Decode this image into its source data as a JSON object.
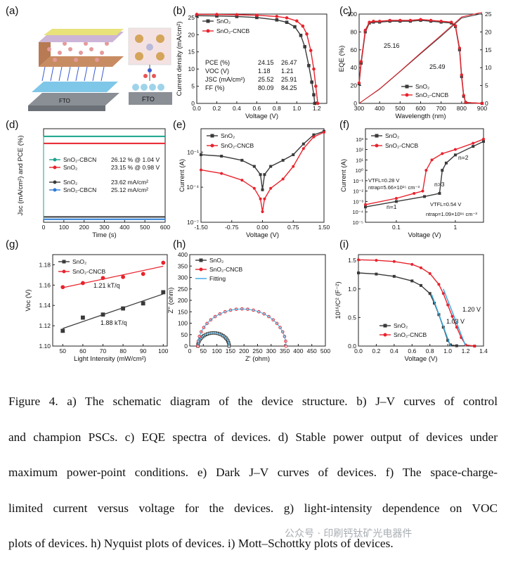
{
  "panels": [
    {
      "id": "a",
      "label": "(a)",
      "fto1": "FTO",
      "fto2": "FTO"
    },
    {
      "id": "b",
      "label": "(b)"
    },
    {
      "id": "c",
      "label": "(c)"
    },
    {
      "id": "d",
      "label": "(d)"
    },
    {
      "id": "e",
      "label": "(e)"
    },
    {
      "id": "f",
      "label": "(f)"
    },
    {
      "id": "g",
      "label": "(g)"
    },
    {
      "id": "h",
      "label": "(h)"
    },
    {
      "id": "i",
      "label": "(i)"
    }
  ],
  "colors": {
    "black": "#3a3a3a",
    "red": "#e8232d",
    "blue": "#2b7bd4",
    "teal": "#1aa38c",
    "fit": "#35a8e0"
  },
  "chart_data": [
    {
      "panel": "b",
      "type": "line",
      "xlabel": "Voltage (V)",
      "ylabel": "Current density (mA/cm²)",
      "xlim": [
        0,
        1.3
      ],
      "ylim": [
        0,
        26
      ],
      "xticks": [
        0.0,
        0.2,
        0.4,
        0.6,
        0.8,
        1.0,
        1.2
      ],
      "yticks": [
        0,
        5,
        10,
        15,
        20,
        25
      ],
      "legend": [
        "SnO₂",
        "SnO₂-CNCB"
      ],
      "table": {
        "rows": [
          {
            "name": "PCE (%)",
            "v1": "24.15",
            "v2": "26.47"
          },
          {
            "name": "VOC (V)",
            "v1": "1.18",
            "v2": "1.21"
          },
          {
            "name": "JSC (mA/cm²)",
            "v1": "25.52",
            "v2": "25.91"
          },
          {
            "name": "FF (%)",
            "v1": "80.09",
            "v2": "84.25"
          }
        ]
      },
      "series": [
        {
          "name": "SnO₂",
          "x": [
            0,
            0.2,
            0.4,
            0.6,
            0.8,
            0.9,
            0.98,
            1.04,
            1.08,
            1.12,
            1.15,
            1.17,
            1.18
          ],
          "y": [
            25.52,
            25.45,
            25.3,
            25.0,
            24.3,
            23.6,
            22.3,
            19.8,
            16.5,
            11.0,
            6.2,
            2.5,
            0
          ]
        },
        {
          "name": "SnO₂-CNCB",
          "x": [
            0,
            0.2,
            0.4,
            0.6,
            0.8,
            0.9,
            1.0,
            1.06,
            1.1,
            1.14,
            1.17,
            1.19,
            1.21
          ],
          "y": [
            25.91,
            25.88,
            25.8,
            25.65,
            25.3,
            24.9,
            24.0,
            22.5,
            20.2,
            15.4,
            10.0,
            5.0,
            0
          ]
        }
      ]
    },
    {
      "panel": "c",
      "type": "line",
      "xlabel": "Wavelength (nm)",
      "ylabel": "EQE (%)",
      "y2label": "Integrated Jsc (mA/cm²)",
      "xlim": [
        300,
        900
      ],
      "ylim": [
        0,
        100
      ],
      "y2lim": [
        0,
        25
      ],
      "xticks": [
        300,
        400,
        500,
        600,
        700,
        800,
        900
      ],
      "yticks": [
        0,
        20,
        40,
        60,
        80,
        100
      ],
      "y2ticks": [
        0,
        5,
        10,
        15,
        20,
        25
      ],
      "legend": [
        "SnO₂",
        "SnO₂-CNCB"
      ],
      "annotations": [
        "25.16",
        "25.49"
      ],
      "series": [
        {
          "name": "SnO₂ EQE",
          "x": [
            300,
            310,
            330,
            350,
            370,
            400,
            450,
            500,
            550,
            600,
            650,
            700,
            750,
            770,
            790,
            800,
            810,
            820,
            900
          ],
          "y": [
            22,
            45,
            80,
            90,
            91,
            91,
            92,
            92,
            92,
            93,
            92,
            91,
            90,
            86,
            60,
            30,
            8,
            1,
            0
          ]
        },
        {
          "name": "SnO₂-CNCB EQE",
          "x": [
            300,
            310,
            330,
            350,
            370,
            400,
            450,
            500,
            550,
            600,
            650,
            700,
            750,
            770,
            790,
            800,
            810,
            820,
            900
          ],
          "y": [
            23,
            47,
            82,
            91,
            92,
            92,
            93,
            93,
            93,
            94,
            93,
            92,
            91,
            87,
            62,
            32,
            9,
            1,
            0
          ]
        },
        {
          "name": "SnO₂ integrated",
          "x": [
            300,
            400,
            500,
            600,
            700,
            800,
            900
          ],
          "y": [
            0,
            4.0,
            8.9,
            13.9,
            18.8,
            23.9,
            25.16
          ]
        },
        {
          "name": "SnO₂-CNCB integrated",
          "x": [
            300,
            400,
            500,
            600,
            700,
            800,
            900
          ],
          "y": [
            0,
            4.1,
            9.0,
            14.1,
            19.1,
            24.2,
            25.49
          ]
        }
      ]
    },
    {
      "panel": "d",
      "type": "line",
      "xlabel": "Time (s)",
      "ylabel": "Jsc (mA/cm²) and PCE (%)",
      "xlim": [
        0,
        600
      ],
      "ylim": [
        0,
        28
      ],
      "xticks": [
        0,
        100,
        200,
        300,
        400,
        500,
        600
      ],
      "legend": [
        {
          "name": "SnO₂-CBCN",
          "value": "26.12 % @ 1.04 V"
        },
        {
          "name": "SnO₂",
          "value": "23.15 % @ 0.98 V"
        },
        {
          "name": "SnO₂",
          "value": "23.62 mA/cm²"
        },
        {
          "name": "SnO₂-CBCN",
          "value": "25.12 mA/cm²"
        }
      ],
      "series": [
        {
          "name": "SnO₂-CBCN PCE",
          "x": [
            0,
            600
          ],
          "y": [
            26.12,
            26.12
          ]
        },
        {
          "name": "SnO₂ PCE",
          "x": [
            0,
            600
          ],
          "y": [
            23.15,
            23.15
          ]
        },
        {
          "name": "SnO₂ Jsc",
          "x": [
            0,
            600
          ],
          "y": [
            23.62,
            23.62
          ]
        },
        {
          "name": "SnO₂-CBCN Jsc",
          "x": [
            0,
            600
          ],
          "y": [
            25.12,
            25.12
          ]
        }
      ]
    },
    {
      "panel": "e",
      "type": "line",
      "xlabel": "Voltage (V)",
      "ylabel": "Current (A)",
      "yscale": "log",
      "xlim": [
        -1.5,
        1.5
      ],
      "ylim": [
        1e-07,
        10
      ],
      "xticks": [
        -1.5,
        -0.75,
        0.0,
        0.75,
        1.5
      ],
      "ytick_labels": [
        "10⁻⁷",
        "10⁻⁴",
        "10⁻¹"
      ],
      "legend": [
        "SnO₂",
        "SnO₂-CNCB"
      ],
      "series": [
        {
          "name": "SnO₂",
          "x": [
            -1.5,
            -1.0,
            -0.5,
            -0.2,
            -0.05,
            0,
            0.05,
            0.2,
            0.5,
            0.75,
            1.0,
            1.25,
            1.5
          ],
          "y": [
            0.06,
            0.045,
            0.02,
            0.006,
            0.0012,
            6e-05,
            0.0012,
            0.006,
            0.02,
            0.06,
            0.5,
            3.0,
            6.0
          ]
        },
        {
          "name": "SnO₂-CNCB",
          "x": [
            -1.5,
            -1.0,
            -0.5,
            -0.2,
            -0.05,
            0,
            0.05,
            0.2,
            0.5,
            0.75,
            1.0,
            1.25,
            1.5
          ],
          "y": [
            0.003,
            0.0015,
            0.0004,
            8e-05,
            1e-05,
            8e-07,
            1e-05,
            8e-05,
            0.0005,
            0.006,
            0.2,
            2.0,
            5.0
          ]
        }
      ]
    },
    {
      "panel": "f",
      "type": "line",
      "xlabel": "Voltage (V)",
      "ylabel": "Current (A)",
      "xscale": "log",
      "yscale": "log",
      "xlim": [
        0.03,
        3
      ],
      "ylim": [
        1e-05,
        10000.0
      ],
      "xtick_labels": [
        "0.1",
        "1"
      ],
      "ytick_labels": [
        "10⁻⁵",
        "10⁻⁴",
        "10⁻³",
        "10⁻²",
        "10⁻¹",
        "10⁰",
        "10¹",
        "10²",
        "10³"
      ],
      "legend": [
        "SnO₂",
        "SnO₂-CNCB"
      ],
      "annotations": [
        "n=2",
        "n>3",
        "n=1",
        "VTFL=0.28 V",
        "ntrap=5.66×10¹⁵ cm⁻³",
        "VTFL=0.54 V",
        "ntrap=1.09×10¹⁶ cm⁻³"
      ],
      "series": [
        {
          "name": "SnO₂",
          "x": [
            0.03,
            0.1,
            0.3,
            0.54,
            0.6,
            0.7,
            1.0,
            2.0,
            3.0
          ],
          "y": [
            0.0003,
            0.001,
            0.003,
            0.006,
            1,
            5,
            30,
            200,
            600
          ]
        },
        {
          "name": "SnO₂-CNCB",
          "x": [
            0.03,
            0.1,
            0.2,
            0.28,
            0.32,
            0.4,
            0.6,
            1.0,
            2.0,
            3.0
          ],
          "y": [
            0.0005,
            0.002,
            0.006,
            0.01,
            1,
            10,
            40,
            100,
            400,
            1000
          ]
        }
      ]
    },
    {
      "panel": "g",
      "type": "scatter",
      "xlabel": "Light Intensity (mW/cm²)",
      "ylabel": "Voc (V)",
      "xlim": [
        45,
        102
      ],
      "ylim": [
        1.1,
        1.19
      ],
      "xticks": [
        50,
        60,
        70,
        80,
        90,
        100
      ],
      "yticks": [
        1.1,
        1.12,
        1.14,
        1.16,
        1.18
      ],
      "legend": [
        "SnO₂",
        "SnO₂-CNCB"
      ],
      "annotations": [
        "1.21 kT/q",
        "1.88 kT/q"
      ],
      "series": [
        {
          "name": "SnO₂",
          "x": [
            50,
            60,
            70,
            80,
            90,
            100
          ],
          "y": [
            1.115,
            1.128,
            1.131,
            1.137,
            1.142,
            1.153
          ]
        },
        {
          "name": "SnO₂-CNCB",
          "x": [
            50,
            60,
            70,
            80,
            90,
            100
          ],
          "y": [
            1.158,
            1.162,
            1.167,
            1.168,
            1.171,
            1.182
          ]
        }
      ]
    },
    {
      "panel": "h",
      "type": "scatter",
      "xlabel": "Z' (ohm)",
      "ylabel": "Z'' (ohm)",
      "xlim": [
        0,
        500
      ],
      "ylim": [
        0,
        400
      ],
      "xticks": [
        0,
        50,
        100,
        150,
        200,
        250,
        300,
        350,
        400,
        450,
        500
      ],
      "yticks": [
        0,
        50,
        100,
        150,
        200,
        250,
        300,
        350,
        400
      ],
      "legend": [
        "SnO₂",
        "SnO₂-CNCB",
        "Fitting"
      ],
      "series": [
        {
          "name": "SnO₂",
          "arc_from": 30,
          "arc_to": 145
        },
        {
          "name": "SnO₂-CNCB",
          "arc_from": 30,
          "arc_to": 355
        }
      ]
    },
    {
      "panel": "i",
      "type": "line",
      "xlabel": "Voltage (V)",
      "ylabel": "10¹⁶/C² (F⁻²)",
      "xlim": [
        0,
        1.4
      ],
      "ylim": [
        0,
        1.6
      ],
      "xticks": [
        0.0,
        0.2,
        0.4,
        0.6,
        0.8,
        1.0,
        1.2,
        1.4
      ],
      "yticks": [
        0.0,
        0.5,
        1.0,
        1.5
      ],
      "legend": [
        "SnO₂",
        "SnO₂-CNCB"
      ],
      "annotations": [
        "1.03 V",
        "1.20 V"
      ],
      "series": [
        {
          "name": "SnO₂",
          "x": [
            0,
            0.2,
            0.4,
            0.6,
            0.7,
            0.8,
            0.85,
            0.9,
            0.95,
            1.0,
            1.03,
            1.1,
            1.3
          ],
          "y": [
            1.28,
            1.26,
            1.22,
            1.14,
            1.06,
            0.92,
            0.75,
            0.55,
            0.33,
            0.1,
            0.02,
            0.005,
            0
          ]
        },
        {
          "name": "SnO₂-CNCB",
          "x": [
            0,
            0.2,
            0.4,
            0.6,
            0.7,
            0.8,
            0.9,
            0.95,
            1.0,
            1.05,
            1.1,
            1.15,
            1.2,
            1.3
          ],
          "y": [
            1.51,
            1.5,
            1.48,
            1.43,
            1.37,
            1.27,
            1.08,
            0.92,
            0.72,
            0.52,
            0.33,
            0.15,
            0.02,
            0
          ]
        }
      ]
    }
  ],
  "caption": {
    "lines": [
      "Figure 4. a) The schematic diagram of the device structure. b) J–V curves of control",
      "and champion PSCs. c) EQE spectra of devices. d) Stable power output of devices under",
      "maximum power-point conditions. e) Dark J–V curves of devices. f) The space-charge-",
      "limited current versus voltage for the devices. g) light-intensity dependence on VOC",
      "plots of devices. h) Nyquist plots of devices. i) Mott–Schottky plots of devices."
    ]
  },
  "watermark": "公众号 · 印刷钙钛矿光电器件"
}
